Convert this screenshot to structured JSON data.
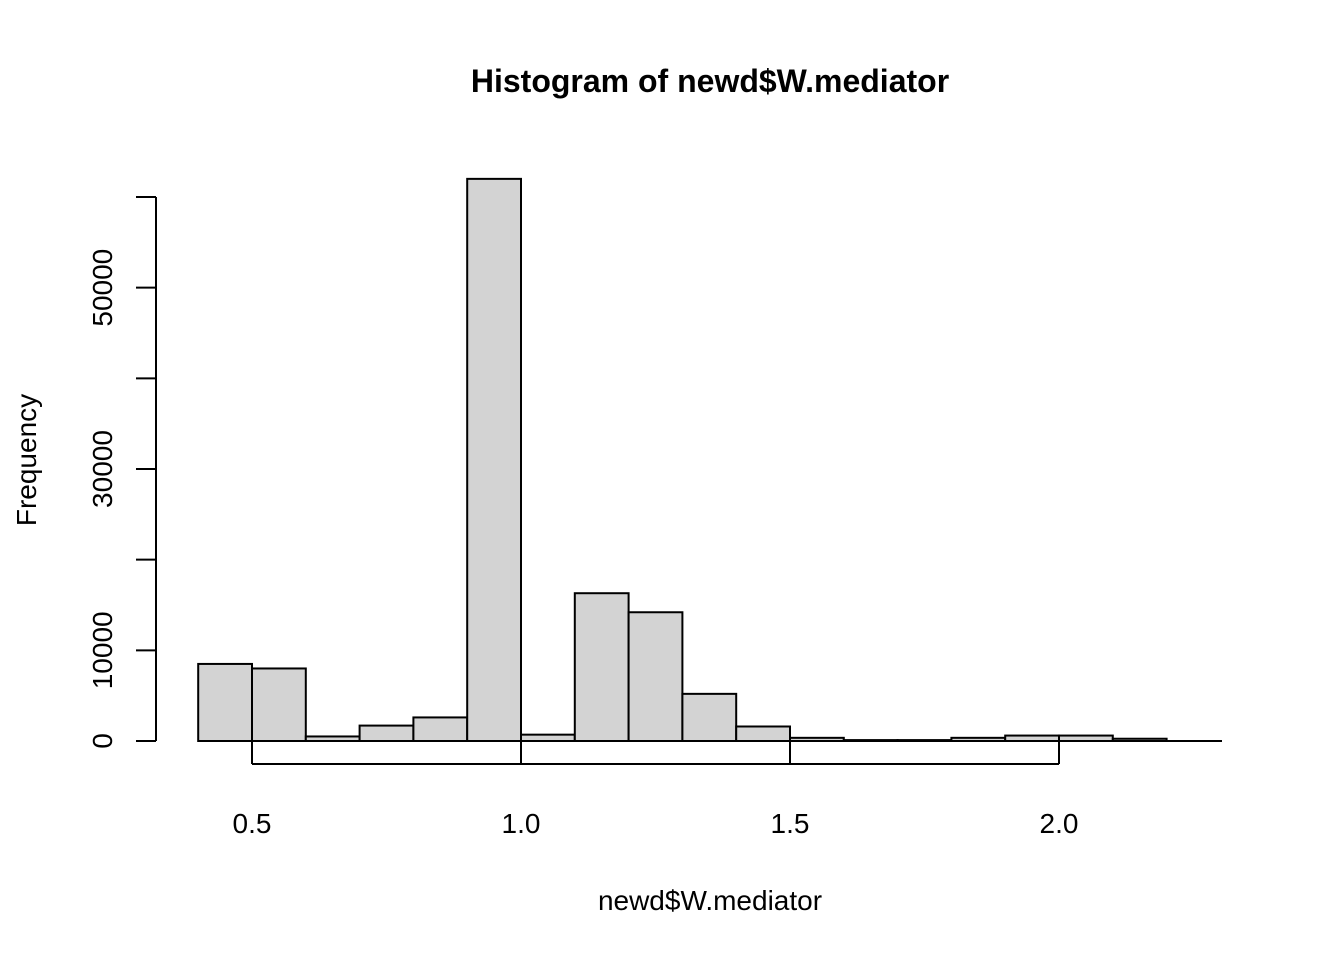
{
  "chart_data": {
    "type": "bar",
    "title": "Histogram of newd$W.mediator",
    "xlabel": "newd$W.mediator",
    "ylabel": "Frequency",
    "bin_edges": [
      0.4,
      0.5,
      0.6,
      0.7,
      0.8,
      0.9,
      1.0,
      1.1,
      1.2,
      1.3,
      1.4,
      1.5,
      1.6,
      1.7,
      1.8,
      1.9,
      2.0,
      2.1,
      2.2
    ],
    "values": [
      8500,
      8000,
      500,
      1700,
      2600,
      62000,
      700,
      16300,
      14200,
      5200,
      1600,
      350,
      100,
      100,
      350,
      600,
      600,
      250
    ],
    "xlim": [
      0.4,
      2.3
    ],
    "ylim": [
      0,
      62000
    ],
    "x_ticks": [
      0.5,
      1.0,
      1.5,
      2.0
    ],
    "x_tick_labels": [
      "0.5",
      "1.0",
      "1.5",
      "2.0"
    ],
    "y_ticks": [
      0,
      10000,
      20000,
      30000,
      40000,
      50000,
      60000
    ],
    "y_tick_labels": [
      "0",
      "10000",
      "",
      "30000",
      "",
      "50000",
      ""
    ],
    "grid": false,
    "bar_fill": "#d3d3d3",
    "bar_stroke": "#000000"
  }
}
